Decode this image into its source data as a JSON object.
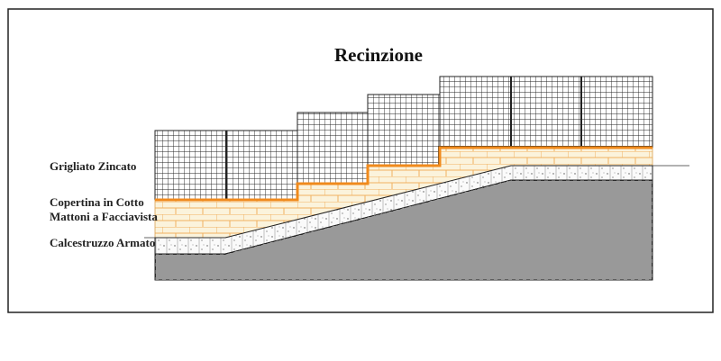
{
  "title": "Recinzione",
  "labels": [
    "Grigliato Zincato",
    "Copertina in Cotto",
    "Mattoni a Facciavista",
    "Calcestruzzo Armato"
  ]
}
